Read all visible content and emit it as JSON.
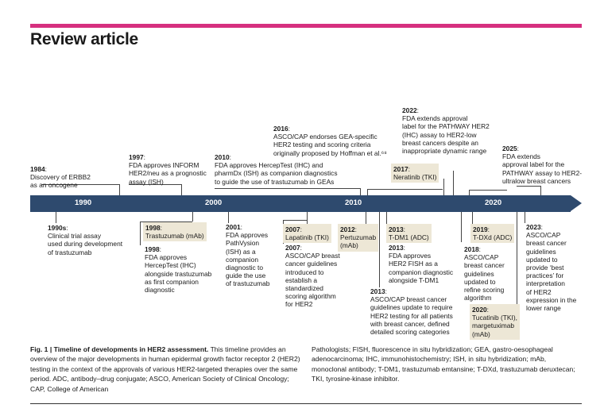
{
  "header": {
    "title": "Review article"
  },
  "timeline": {
    "axis_ticks": [
      "1990",
      "2000",
      "2010",
      "2020"
    ],
    "above": [
      {
        "year": "1984",
        "text": "Discovery of ERBB2\nas an oncogene"
      },
      {
        "year": "1997",
        "text": "FDA approves INFORM\nHER2/neu as a prognostic\nassay (ISH)"
      },
      {
        "year": "2010",
        "text": "FDA approves HercepTest (IHC) and\npharmDx (ISH) as companion diagnostics\nto guide the use of trastuzumab in GEAs"
      },
      {
        "year": "2016",
        "text": "ASCO/CAP endorses GEA-specific\nHER2 testing and scoring criteria\noriginally proposed by Hoffman et al.⁶⁸"
      },
      {
        "year": "2017",
        "text": "Neratinib (TKI)"
      },
      {
        "year": "2022",
        "text": "FDA extends approval\nlabel for the PATHWAY HER2\n(IHC) assay to HER2-low\nbreast cancers despite an\ninappropriate dynamic range"
      },
      {
        "year": "2025",
        "text": "FDA extends\napproval label for the\nPATHWAY assay to HER2-\nultralow breast cancers"
      }
    ],
    "below": [
      {
        "year": "1990s",
        "text": "Clinical trial assay\nused during development\nof trastuzumab"
      },
      {
        "year": "1998",
        "text": "Trastuzumab (mAb)"
      },
      {
        "year": "1998",
        "text": "FDA approves\nHercepTest (IHC)\nalongside trastuzumab\nas first companion\ndiagnostic"
      },
      {
        "year": "2001",
        "text": "FDA approves\nPathVysion\n(ISH) as a\ncompanion\ndiagnostic to\nguide the use\nof trastuzumab"
      },
      {
        "year": "2007",
        "text": "Lapatinib (TKI)"
      },
      {
        "year": "2007",
        "text": "ASCO/CAP breast\ncancer guidelines\nintroduced to\nestablish a\nstandardized\nscoring algorithm\nfor HER2"
      },
      {
        "year": "2012",
        "text": "Pertuzumab\n(mAb)"
      },
      {
        "year": "2013",
        "text": "T-DM1 (ADC)"
      },
      {
        "year": "2013",
        "text": "FDA approves\nHER2 FISH as a\ncompanion diagnostic\nalongside T-DM1"
      },
      {
        "year": "2013",
        "text": "ASCO/CAP breast cancer\nguidelines update to require\nHER2 testing for all patients\nwith breast cancer, defined\ndetailed scoring categories"
      },
      {
        "year": "2018",
        "text": "ASCO/CAP\nbreast cancer\nguidelines\nupdated to\nrefine scoring\nalgorithm"
      },
      {
        "year": "2019",
        "text": "T-DXd (ADC)"
      },
      {
        "year": "2020",
        "text": "Tucatinib (TKI),\nmargetuximab\n(mAb)"
      },
      {
        "year": "2023",
        "text": "ASCO/CAP\nbreast cancer\nguidelines\nupdated to\nprovide ‘best\npractices’ for\ninterpretation\nof HER2\nexpression in the\nlower range"
      }
    ]
  },
  "caption": {
    "label": "Fig. 1 | Timeline of developments in HER2 assessment.",
    "left_text": "This timeline provides an overview of the major developments in human epidermal growth factor receptor 2 (HER2) testing in the context of the approvals of various HER2-targeted therapies over the same period. ADC, antibody–drug conjugate; ASCO, American Society of Clinical Oncology; CAP, College of American",
    "right_text": "Pathologists; FISH, fluorescence in situ hybridization; GEA, gastro-oesophageal adenocarcinoma; IHC, immunohistochemistry; ISH, in situ hybridization; mAb, monoclonal antibody; T-DM1, trastuzumab emtansine; T-DXd, trastuzumab deruxtecan; TKI, tyrosine-kinase inhibitor."
  },
  "colors": {
    "accent_bar": "#d6307f",
    "axis": "#2e4a6e",
    "highlight": "#ede7d6"
  }
}
